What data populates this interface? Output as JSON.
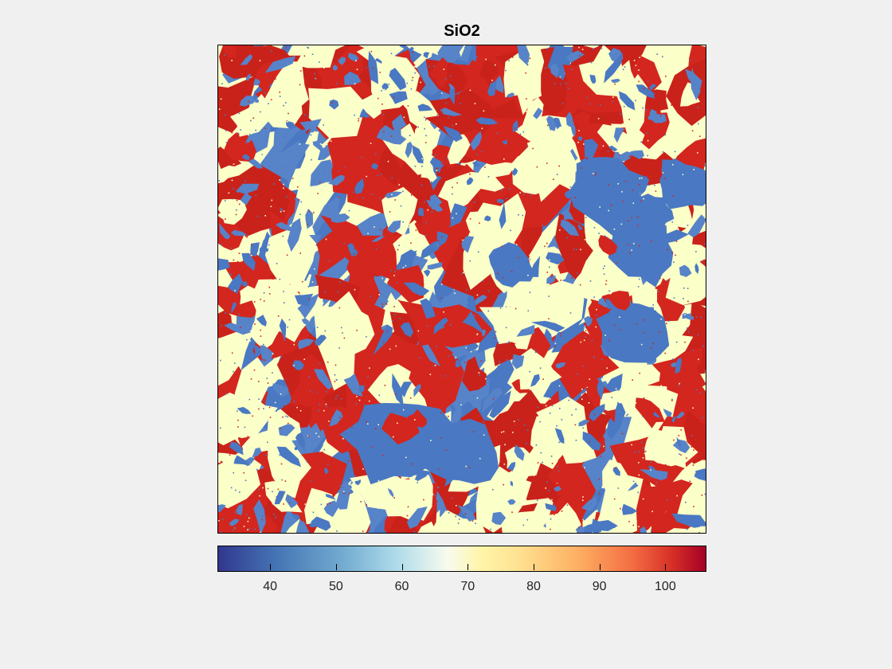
{
  "figure": {
    "title": "SiO2"
  },
  "chart_data": {
    "type": "heatmap",
    "title": "SiO2",
    "xlabel": "",
    "ylabel": "",
    "colormap": "RdYlBu (reversed)",
    "colorbar": {
      "orientation": "horizontal",
      "placement": "bottom",
      "range": [
        32,
        106
      ],
      "ticks": [
        40,
        50,
        60,
        70,
        80,
        90,
        100
      ],
      "tick_labels": [
        "40",
        "50",
        "60",
        "70",
        "80",
        "90",
        "100"
      ]
    },
    "dominant_classes": [
      {
        "approx_value": 45,
        "color": "#4a78c2"
      },
      {
        "approx_value": 68,
        "color": "#fbffc8"
      },
      {
        "approx_value": 100,
        "color": "#d3261e"
      }
    ],
    "axes_visible": false,
    "grid": false
  }
}
